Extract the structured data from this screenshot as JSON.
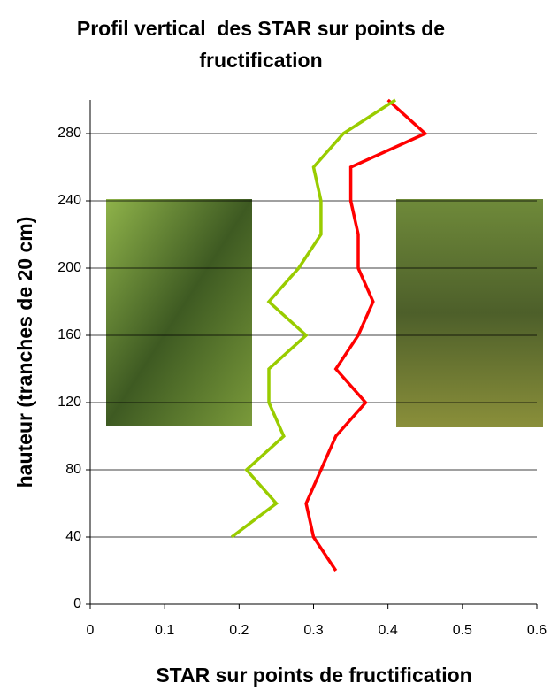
{
  "chart_data": {
    "type": "line",
    "title": "Profil vertical  des STAR sur points de fructification",
    "x_label": "STAR sur points de fructification",
    "y_label": "hauteur (tranches de 20 cm)",
    "xlim": [
      0,
      0.6
    ],
    "xticks": [
      0,
      0.1,
      0.2,
      0.3,
      0.4,
      0.5,
      0.6
    ],
    "ylim": [
      0,
      300
    ],
    "yticks": [
      0,
      40,
      80,
      120,
      160,
      200,
      240,
      280
    ],
    "grid": true,
    "y": [
      20,
      40,
      60,
      80,
      100,
      120,
      140,
      160,
      180,
      200,
      220,
      240,
      260,
      280,
      300
    ],
    "series": [
      {
        "color": "#ff0000",
        "values": [
          0.33,
          0.3,
          0.29,
          0.31,
          0.33,
          0.37,
          0.33,
          0.36,
          0.38,
          0.36,
          0.36,
          0.35,
          0.35,
          0.45,
          0.4
        ]
      },
      {
        "color": "#99cc00",
        "values": [
          null,
          0.19,
          0.25,
          0.21,
          0.26,
          0.24,
          0.24,
          0.29,
          0.24,
          0.28,
          0.31,
          0.31,
          0.3,
          0.34,
          0.41
        ]
      }
    ]
  }
}
